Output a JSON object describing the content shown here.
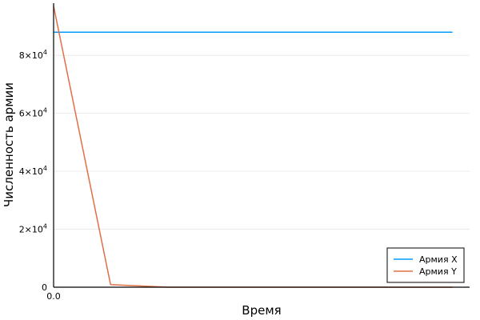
{
  "chart_data": {
    "type": "line",
    "xlabel": "Время",
    "ylabel": "Численность армии",
    "x": [
      0.0,
      0.1,
      0.2,
      0.3,
      0.4,
      0.5,
      0.6,
      0.7
    ],
    "x_tick_labels": [
      {
        "value": 0.0,
        "text": "0.0"
      }
    ],
    "y_ticks": [
      {
        "value": 0,
        "mantissa": "0",
        "exponent": ""
      },
      {
        "value": 20000,
        "mantissa": "2×10",
        "exponent": "4"
      },
      {
        "value": 40000,
        "mantissa": "4×10",
        "exponent": "4"
      },
      {
        "value": 60000,
        "mantissa": "6×10",
        "exponent": "4"
      },
      {
        "value": 80000,
        "mantissa": "8×10",
        "exponent": "4"
      }
    ],
    "xlim": [
      0.0,
      0.73
    ],
    "ylim": [
      0,
      98000
    ],
    "grid": true,
    "legend_position": "bottom-right",
    "series": [
      {
        "name": "Армия X",
        "color": "#009af9",
        "values": [
          88000,
          88000,
          88000,
          88000,
          88000,
          88000,
          88000,
          88000
        ]
      },
      {
        "name": "Армия Y",
        "color": "#e26f46",
        "values": [
          97000,
          900,
          0,
          0,
          0,
          0,
          0,
          0
        ]
      }
    ]
  }
}
